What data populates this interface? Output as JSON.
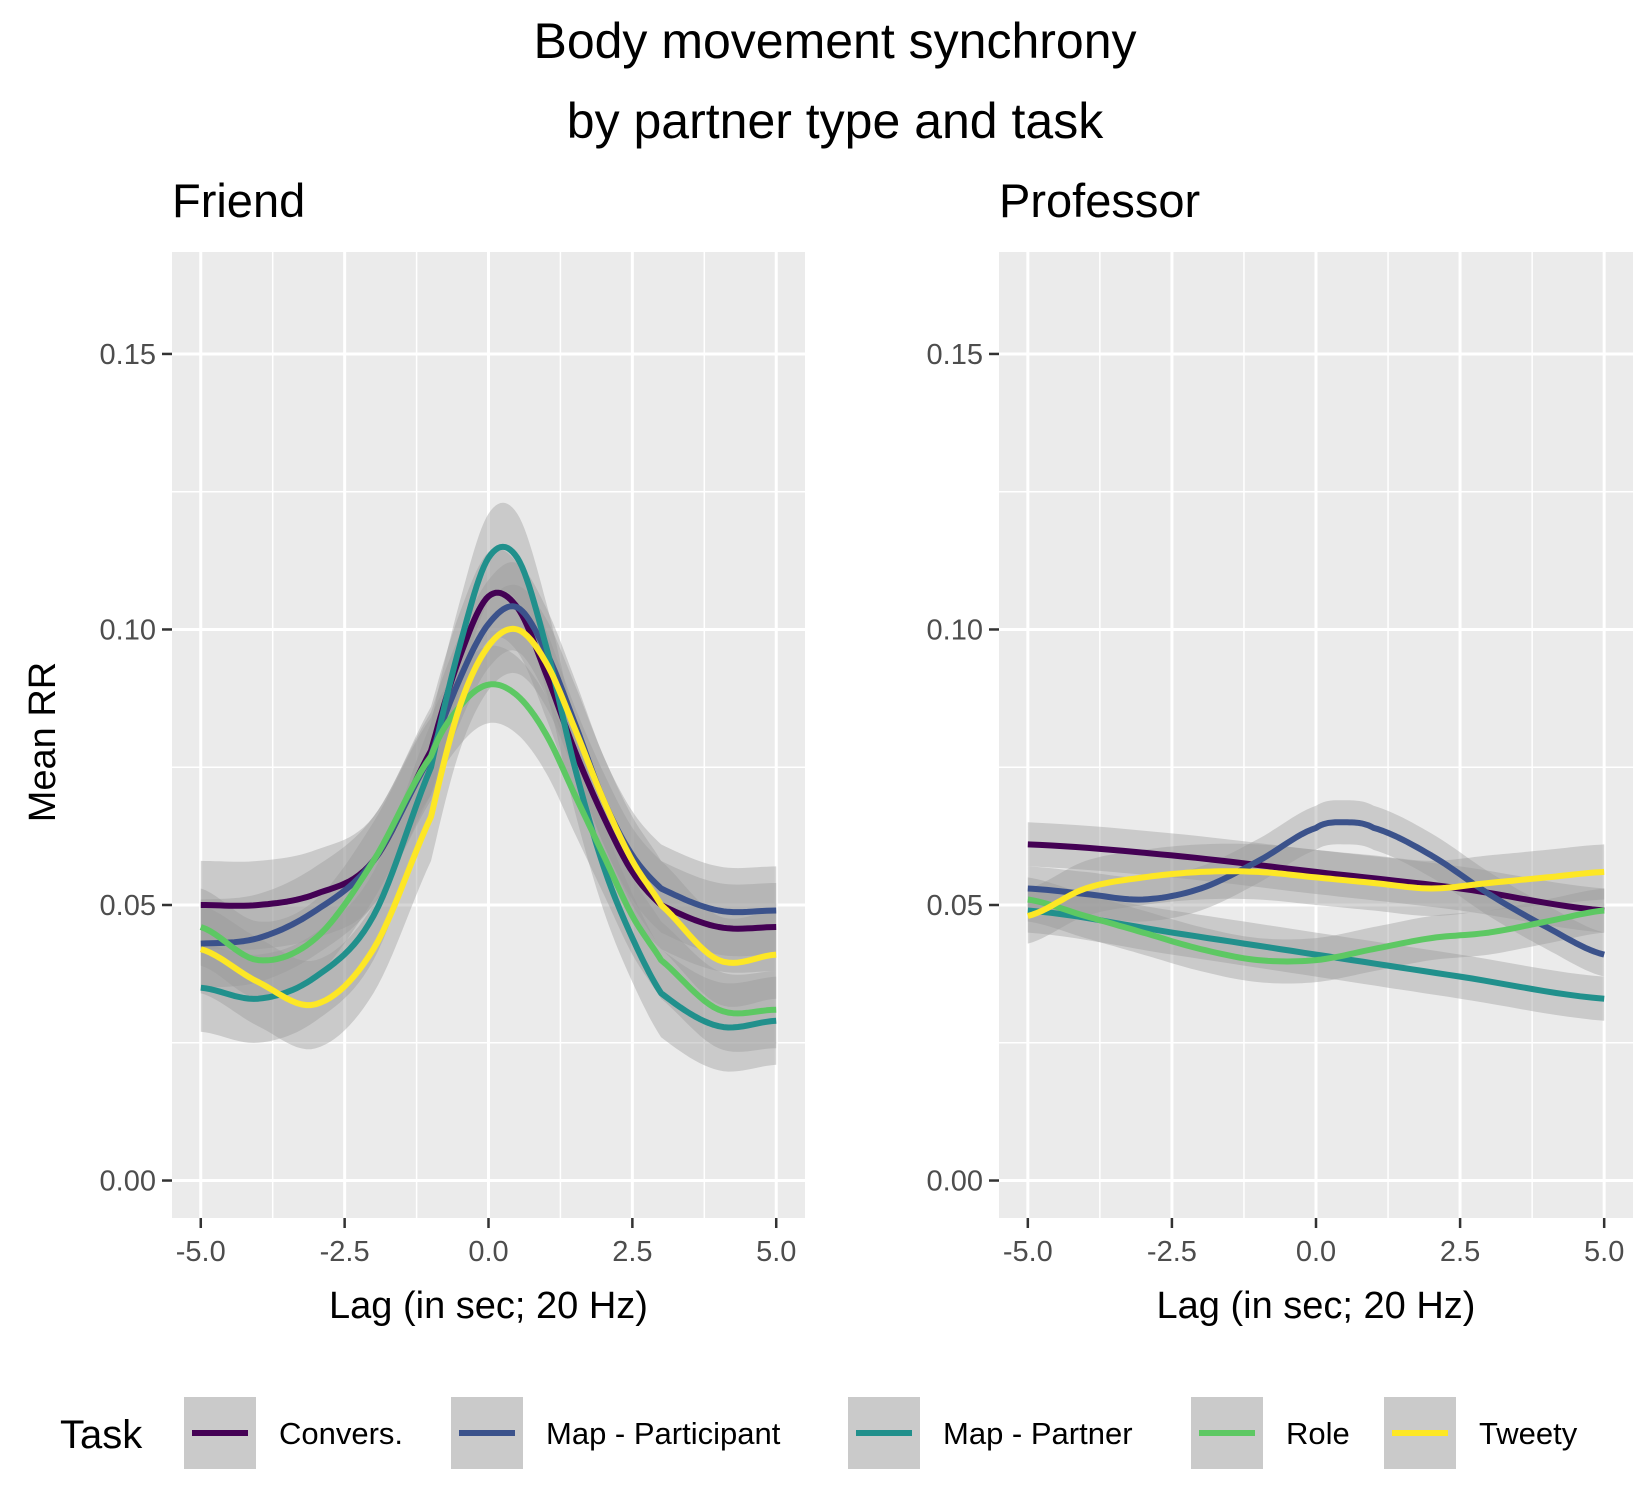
{
  "title_lines": [
    "Body movement synchrony",
    "by partner type and task"
  ],
  "chart_data": {
    "type": "line",
    "xlabel": "Lag (in sec; 20 Hz)",
    "ylabel": "Mean RR",
    "xlim": [
      -5.5,
      5.5
    ],
    "ylim": [
      -0.0068,
      0.1685
    ],
    "x_ticks": [
      -5.0,
      -2.5,
      0.0,
      2.5,
      5.0
    ],
    "x_tick_labels": [
      "-5.0",
      "-2.5",
      "0.0",
      "2.5",
      "5.0"
    ],
    "y_ticks": [
      0.0,
      0.05,
      0.1,
      0.15
    ],
    "y_tick_labels": [
      "0.00",
      "0.05",
      "0.10",
      "0.15"
    ],
    "grid": true,
    "legend_title": "Task",
    "legend_position": "bottom",
    "band_color": "#999999",
    "panels": [
      {
        "name": "Friend",
        "series": [
          {
            "name": "Convers.",
            "color": "#440154",
            "band": 0.008,
            "x": [
              -5,
              -4,
              -3,
              -2,
              -1,
              -0.5,
              0,
              0.5,
              1,
              1.5,
              2,
              2.5,
              3,
              4,
              5
            ],
            "y": [
              0.05,
              0.05,
              0.052,
              0.058,
              0.078,
              0.095,
              0.106,
              0.104,
              0.092,
              0.078,
              0.066,
              0.056,
              0.05,
              0.046,
              0.046
            ]
          },
          {
            "name": "Map - Participant",
            "color": "#3B528B",
            "band": 0.008,
            "x": [
              -5,
              -4,
              -3,
              -2,
              -1,
              -0.5,
              0,
              0.5,
              1,
              1.5,
              2,
              2.5,
              3,
              4,
              5
            ],
            "y": [
              0.043,
              0.044,
              0.049,
              0.058,
              0.077,
              0.091,
              0.101,
              0.104,
              0.096,
              0.083,
              0.069,
              0.059,
              0.053,
              0.049,
              0.049
            ]
          },
          {
            "name": "Map - Partner",
            "color": "#21908C",
            "band": 0.008,
            "x": [
              -5,
              -4,
              -3,
              -2,
              -1,
              -0.5,
              0,
              0.5,
              1,
              1.5,
              2,
              2.5,
              3,
              4,
              5
            ],
            "y": [
              0.035,
              0.033,
              0.037,
              0.048,
              0.075,
              0.097,
              0.113,
              0.113,
              0.097,
              0.075,
              0.057,
              0.044,
              0.034,
              0.028,
              0.029
            ]
          },
          {
            "name": "Role",
            "color": "#5DC863",
            "band": 0.007,
            "x": [
              -5,
              -4,
              -3,
              -2,
              -1,
              -0.5,
              0,
              0.5,
              1,
              1.5,
              2,
              2.5,
              3,
              4,
              5
            ],
            "y": [
              0.046,
              0.04,
              0.044,
              0.058,
              0.077,
              0.086,
              0.09,
              0.088,
              0.081,
              0.07,
              0.059,
              0.048,
              0.04,
              0.031,
              0.031
            ]
          },
          {
            "name": "Tweety",
            "color": "#FDE725",
            "band": 0.008,
            "x": [
              -5,
              -4,
              -3,
              -2,
              -1,
              -0.5,
              0,
              0.5,
              1,
              1.5,
              2,
              2.5,
              3,
              4,
              5
            ],
            "y": [
              0.042,
              0.036,
              0.032,
              0.042,
              0.066,
              0.086,
              0.097,
              0.1,
              0.094,
              0.082,
              0.069,
              0.058,
              0.05,
              0.04,
              0.041
            ]
          }
        ]
      },
      {
        "name": "Professor",
        "series": [
          {
            "name": "Convers.",
            "color": "#440154",
            "band": 0.004,
            "x": [
              -5,
              -2.5,
              0,
              2.5,
              5
            ],
            "y": [
              0.061,
              0.059,
              0.056,
              0.053,
              0.049
            ]
          },
          {
            "name": "Map - Participant",
            "color": "#3B528B",
            "band": 0.004,
            "x": [
              -5,
              -4,
              -3,
              -2,
              -1,
              0,
              0.5,
              1,
              2,
              3,
              4,
              5
            ],
            "y": [
              0.053,
              0.052,
              0.051,
              0.053,
              0.058,
              0.064,
              0.065,
              0.064,
              0.059,
              0.052,
              0.046,
              0.041
            ]
          },
          {
            "name": "Map - Partner",
            "color": "#21908C",
            "band": 0.004,
            "x": [
              -5,
              -2.5,
              0,
              2.5,
              5
            ],
            "y": [
              0.049,
              0.045,
              0.041,
              0.037,
              0.033
            ]
          },
          {
            "name": "Role",
            "color": "#5DC863",
            "band": 0.004,
            "x": [
              -5,
              -4,
              -3,
              -2,
              -1,
              0,
              1,
              2,
              3,
              4,
              5
            ],
            "y": [
              0.051,
              0.048,
              0.045,
              0.042,
              0.04,
              0.04,
              0.042,
              0.044,
              0.045,
              0.047,
              0.049
            ]
          },
          {
            "name": "Tweety",
            "color": "#FDE725",
            "band": 0.005,
            "x": [
              -5,
              -4,
              -3,
              -2,
              -1,
              0,
              1,
              2,
              3,
              4,
              5
            ],
            "y": [
              0.048,
              0.053,
              0.055,
              0.056,
              0.056,
              0.055,
              0.054,
              0.053,
              0.054,
              0.055,
              0.056
            ]
          }
        ]
      }
    ]
  }
}
